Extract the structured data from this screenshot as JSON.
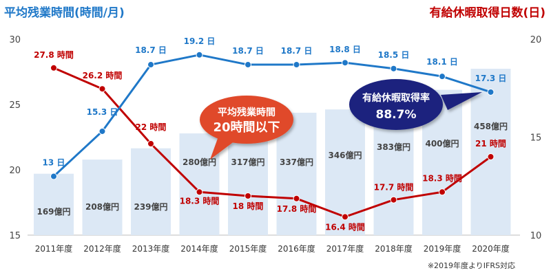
{
  "chart_data": {
    "type": "bar",
    "title_left": "平均残業時間(時間/月)",
    "title_right": "有給休暇取得日数(日)",
    "categories": [
      "2011年度",
      "2012年度",
      "2013年度",
      "2014年度",
      "2015年度",
      "2016年度",
      "2017年度",
      "2018年度",
      "2019年度",
      "2020年度"
    ],
    "y_left_ticks": [
      "30",
      "25",
      "20",
      "15"
    ],
    "y_right_ticks": [
      "20",
      "15",
      "10"
    ],
    "ylim_left": [
      15,
      30
    ],
    "ylim_right": [
      10,
      20
    ],
    "bars": {
      "values": [
        169,
        208,
        239,
        280,
        317,
        337,
        346,
        383,
        400,
        458
      ],
      "labels": [
        "169億円",
        "208億円",
        "239億円",
        "280億円",
        "317億円",
        "337億円",
        "346億円",
        "383億円",
        "400億円",
        "458億円"
      ],
      "color": "#dce8f5"
    },
    "overtime": {
      "values": [
        27.8,
        26.2,
        22,
        18.3,
        18,
        17.8,
        16.4,
        17.7,
        18.3,
        21
      ],
      "labels": [
        "27.8 時間",
        "26.2 時間",
        "22 時間",
        "18.3 時間",
        "18 時間",
        "17.8 時間",
        "16.4 時間",
        "17.7 時間",
        "18.3 時間",
        "21 時間"
      ],
      "color": "#c00000"
    },
    "leave": {
      "values": [
        13,
        15.3,
        18.7,
        19.2,
        18.7,
        18.7,
        18.8,
        18.5,
        18.1,
        17.3
      ],
      "labels": [
        "13 日",
        "15.3 日",
        "18.7 日",
        "19.2 日",
        "18.7 日",
        "18.7 日",
        "18.8 日",
        "18.5 日",
        "18.1 日",
        "17.3 日"
      ],
      "color": "#1f78c8"
    },
    "callout_red": {
      "line1": "平均残業時間",
      "line2": "20時間以下",
      "color": "#e04a2c"
    },
    "callout_blue": {
      "line1": "有給休暇取得率",
      "line2": "88.7%",
      "color": "#1a237e"
    },
    "note": "※2019年度よりIFRS対応",
    "colors": {
      "title_left": "#1f78c8",
      "title_right": "#c00000"
    }
  }
}
